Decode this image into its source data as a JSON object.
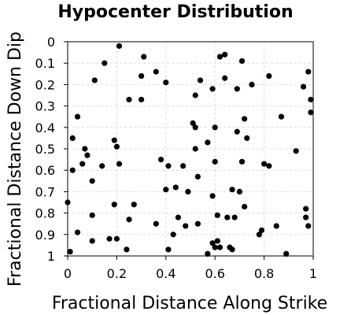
{
  "chart_data": {
    "type": "scatter",
    "title": "Hypocenter Distribution",
    "xlabel": "Fractional Distance Along Strike",
    "ylabel": "Fractional Distance Down Dip",
    "xlim": [
      0,
      1
    ],
    "ylim": [
      0,
      1
    ],
    "y_inverted": true,
    "grid": true,
    "x_ticks": [
      0,
      0.2,
      0.4,
      0.6,
      0.8,
      1
    ],
    "x_tick_labels": [
      "0",
      "0.2",
      "0.4",
      "0.6",
      "0.8",
      "1"
    ],
    "y_ticks": [
      0,
      0.1,
      0.2,
      0.3,
      0.4,
      0.5,
      0.6,
      0.7,
      0.8,
      0.9,
      1
    ],
    "y_tick_labels": [
      "0",
      "0.1",
      "0.2",
      "0.3",
      "0.4",
      "0.5",
      "0.6",
      "0.7",
      "0.8",
      "0.9",
      "1"
    ],
    "marker_color": "#000000",
    "frame_color": "#7f7f7f",
    "points": [
      [
        0.21,
        0.02
      ],
      [
        0.15,
        0.1
      ],
      [
        0.31,
        0.07
      ],
      [
        0.36,
        0.14
      ],
      [
        0.3,
        0.16
      ],
      [
        0.4,
        0.19
      ],
      [
        0.11,
        0.18
      ],
      [
        0.62,
        0.07
      ],
      [
        0.64,
        0.06
      ],
      [
        0.71,
        0.09
      ],
      [
        0.54,
        0.18
      ],
      [
        0.59,
        0.22
      ],
      [
        0.64,
        0.17
      ],
      [
        0.69,
        0.22
      ],
      [
        0.75,
        0.2
      ],
      [
        0.82,
        0.16
      ],
      [
        0.98,
        0.14
      ],
      [
        0.96,
        0.21
      ],
      [
        0.99,
        0.27
      ],
      [
        0.99,
        0.33
      ],
      [
        0.25,
        0.27
      ],
      [
        0.3,
        0.27
      ],
      [
        0.52,
        0.25
      ],
      [
        0.04,
        0.35
      ],
      [
        0.87,
        0.35
      ],
      [
        0.51,
        0.38
      ],
      [
        0.52,
        0.4
      ],
      [
        0.6,
        0.4
      ],
      [
        0.69,
        0.42
      ],
      [
        0.72,
        0.36
      ],
      [
        0.73,
        0.45
      ],
      [
        0.02,
        0.45
      ],
      [
        0.07,
        0.5
      ],
      [
        0.08,
        0.53
      ],
      [
        0.19,
        0.46
      ],
      [
        0.2,
        0.49
      ],
      [
        0.52,
        0.5
      ],
      [
        0.57,
        0.47
      ],
      [
        0.93,
        0.51
      ],
      [
        0.06,
        0.57
      ],
      [
        0.14,
        0.58
      ],
      [
        0.21,
        0.57
      ],
      [
        0.38,
        0.55
      ],
      [
        0.41,
        0.58
      ],
      [
        0.47,
        0.58
      ],
      [
        0.53,
        0.63
      ],
      [
        0.6,
        0.56
      ],
      [
        0.71,
        0.56
      ],
      [
        0.8,
        0.57
      ],
      [
        0.82,
        0.58
      ],
      [
        0.02,
        0.6
      ],
      [
        0.1,
        0.65
      ],
      [
        0.4,
        0.69
      ],
      [
        0.44,
        0.68
      ],
      [
        0.49,
        0.7
      ],
      [
        0.59,
        0.72
      ],
      [
        0.67,
        0.69
      ],
      [
        0.7,
        0.7
      ],
      [
        0.72,
        0.77
      ],
      [
        0.0,
        0.75
      ],
      [
        0.19,
        0.76
      ],
      [
        0.27,
        0.76
      ],
      [
        0.1,
        0.81
      ],
      [
        0.25,
        0.83
      ],
      [
        0.36,
        0.85
      ],
      [
        0.45,
        0.82
      ],
      [
        0.48,
        0.86
      ],
      [
        0.53,
        0.85
      ],
      [
        0.61,
        0.81
      ],
      [
        0.65,
        0.82
      ],
      [
        0.68,
        0.82
      ],
      [
        0.78,
        0.9
      ],
      [
        0.79,
        0.88
      ],
      [
        0.85,
        0.86
      ],
      [
        0.97,
        0.78
      ],
      [
        0.97,
        0.82
      ],
      [
        0.98,
        0.86
      ],
      [
        0.04,
        0.89
      ],
      [
        0.1,
        0.93
      ],
      [
        0.17,
        0.92
      ],
      [
        0.2,
        0.92
      ],
      [
        0.24,
        0.97
      ],
      [
        0.43,
        0.9
      ],
      [
        0.41,
        0.97
      ],
      [
        0.57,
        0.99
      ],
      [
        0.59,
        0.94
      ],
      [
        0.6,
        0.96
      ],
      [
        0.61,
        0.93
      ],
      [
        0.62,
        0.96
      ],
      [
        0.66,
        0.96
      ],
      [
        0.67,
        0.97
      ],
      [
        0.89,
        0.99
      ],
      [
        0.01,
        0.98
      ]
    ]
  }
}
